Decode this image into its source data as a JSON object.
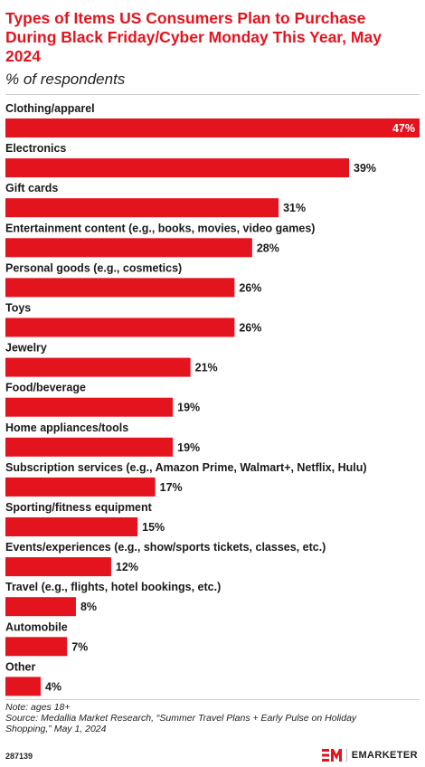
{
  "title": "Types of Items US Consumers Plan to Purchase During Black Friday/Cyber Monday This Year, May 2024",
  "subtitle": "% of respondents",
  "note": "Note: ages 18+",
  "source": "Source: Medallia Market Research, “Summer Travel Plans + Early Pulse on Holiday Shopping,” May 1, 2024",
  "chart_id": "287139",
  "brand": "EMARKETER",
  "colors": {
    "bar": "#e4141e",
    "title": "#e4141e",
    "label": "#1a1a1a"
  },
  "chart_data": {
    "type": "bar",
    "orientation": "horizontal",
    "categories": [
      "Clothing/apparel",
      "Electronics",
      "Gift cards",
      "Entertainment content (e.g., books, movies, video games)",
      "Personal goods (e.g., cosmetics)",
      "Toys",
      "Jewelry",
      "Food/beverage",
      "Home appliances/tools",
      "Subscription services (e.g., Amazon Prime, Walmart+, Netflix, Hulu)",
      "Sporting/fitness equipment",
      "Events/experiences (e.g., show/sports tickets, classes, etc.)",
      "Travel (e.g., flights, hotel bookings, etc.)",
      "Automobile",
      "Other"
    ],
    "values": [
      47,
      39,
      31,
      28,
      26,
      26,
      21,
      19,
      19,
      17,
      15,
      12,
      8,
      7,
      4
    ],
    "value_labels": [
      "47%",
      "39%",
      "31%",
      "28%",
      "26%",
      "26%",
      "21%",
      "19%",
      "19%",
      "17%",
      "15%",
      "12%",
      "8%",
      "7%",
      "4%"
    ],
    "xlim": [
      0,
      47
    ],
    "grid": false,
    "legend": "none"
  }
}
